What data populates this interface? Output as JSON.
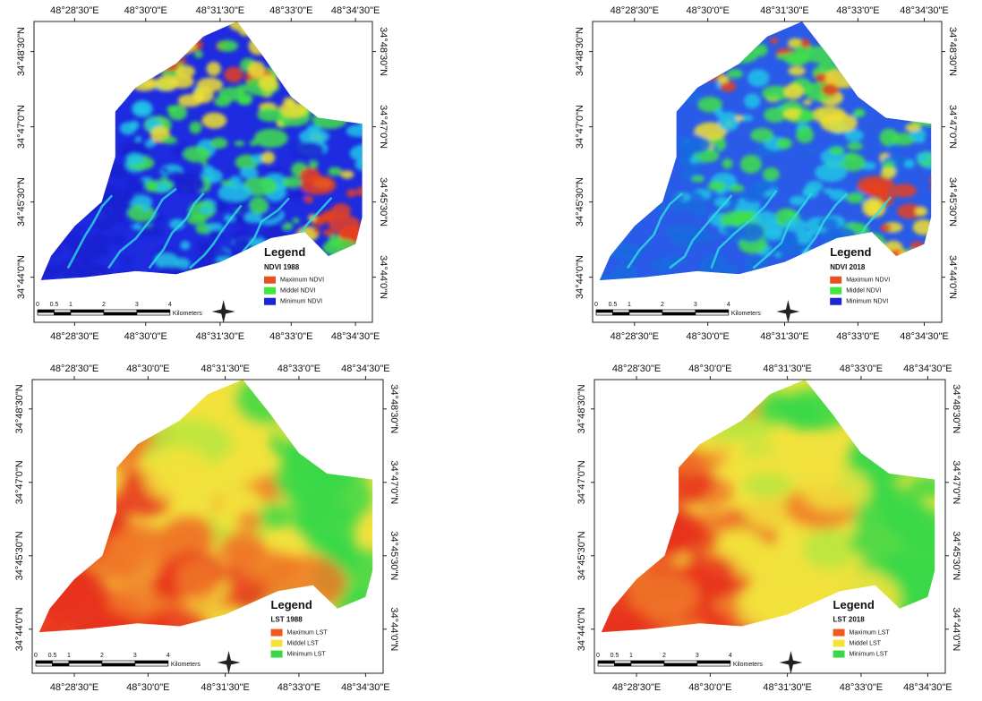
{
  "longitude_labels": [
    "48°28'30\"E",
    "48°30'0\"E",
    "48°31'30\"E",
    "48°33'0\"E",
    "48°34'30\"E"
  ],
  "latitude_labels": [
    "34°48'30\"N",
    "34°47'0\"N",
    "34°45'30\"N",
    "34°44'0\"N"
  ],
  "scale_labels": [
    "0",
    "0.5",
    "1",
    "2",
    "3",
    "4"
  ],
  "scale_unit": "Kilometers",
  "maps": [
    {
      "kind": "ndvi",
      "legend_title": "Legend",
      "legend_subtitle": "NDVI 1988",
      "legend_items": [
        {
          "label": "Maximum NDVI",
          "color": "#e8501e"
        },
        {
          "label": "Middel NDVI",
          "color": "#3ee83a"
        },
        {
          "label": "Minimum NDVI",
          "color": "#1c24d8"
        }
      ]
    },
    {
      "kind": "ndvi",
      "legend_title": "Legend",
      "legend_subtitle": "NDVI 2018",
      "legend_items": [
        {
          "label": "Maximum NDVI",
          "color": "#e8501e"
        },
        {
          "label": "Middel NDVI",
          "color": "#3ee83a"
        },
        {
          "label": "Minimum NDVI",
          "color": "#1c24d8"
        }
      ]
    },
    {
      "kind": "lst",
      "legend_title": "Legend",
      "legend_subtitle": "LST 1988",
      "legend_items": [
        {
          "label": "Maximum LST",
          "color": "#f05a1e"
        },
        {
          "label": "Middel LST",
          "color": "#f5e23a"
        },
        {
          "label": "Minimum LST",
          "color": "#3ad848"
        }
      ]
    },
    {
      "kind": "lst",
      "legend_title": "Legend",
      "legend_subtitle": "LST 2018",
      "legend_items": [
        {
          "label": "Maximum LST",
          "color": "#f05a1e"
        },
        {
          "label": "Middel LST",
          "color": "#f5e23a"
        },
        {
          "label": "Minimum LST",
          "color": "#3ad848"
        }
      ]
    }
  ]
}
